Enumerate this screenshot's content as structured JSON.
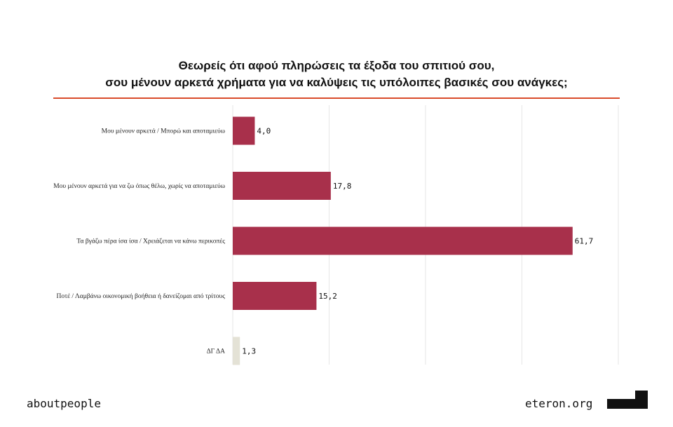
{
  "title_lines": [
    "Θεωρείς ότι αφού πληρώσεις τα έξοδα του σπιτιού σου,",
    "σου μένουν αρκετά χρήματα για να καλύψεις τις υπόλοιπες βασικές σου ανάγκες;"
  ],
  "chart_data": {
    "type": "bar",
    "orientation": "horizontal",
    "categories": [
      "Μου μένουν αρκετά / Μπορώ και αποταμιεύω",
      "Μου μένουν αρκετά για να ζω όπως θέλω, χωρίς να αποταμιεύω",
      "Τα βγάζω πέρα ίσα ίσα / Χρειάζεται να κάνω περικοπές",
      "Ποτέ / Λαμβάνω οικονομική βοήθεια ή δανείζομαι από τρίτους",
      "ΔΓ ΔΑ"
    ],
    "values": [
      4.0,
      17.8,
      61.7,
      15.2,
      1.3
    ],
    "value_labels": [
      "4,0",
      "17,8",
      "61,7",
      "15,2",
      "1,3"
    ],
    "bar_colors": [
      "#a8304b",
      "#a8304b",
      "#a8304b",
      "#a8304b",
      "#e4e2d6"
    ],
    "xlim": [
      0,
      70
    ],
    "gridlines": [
      0,
      17.5,
      35,
      52.5,
      70
    ],
    "grid": true,
    "xlabel": "",
    "ylabel": ""
  },
  "footer": {
    "left_text": "aboutpeople",
    "right_text": "eteron.org"
  }
}
